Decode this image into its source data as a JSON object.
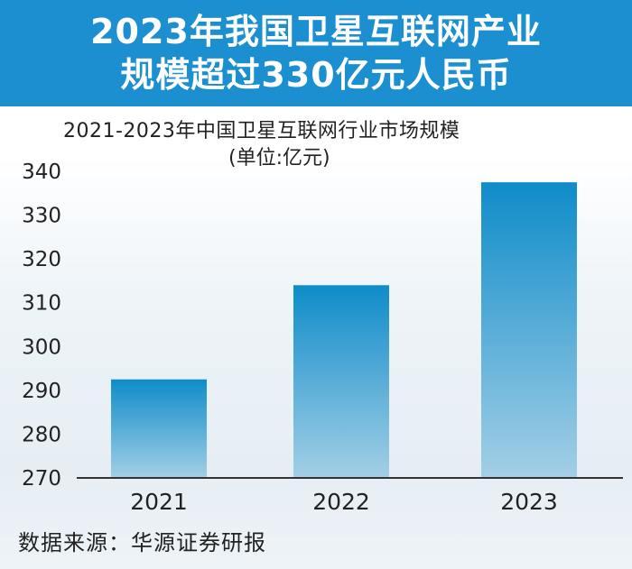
{
  "banner": {
    "line1": "2023年我国卫星互联网产业",
    "line2": "规模超过330亿元人民币"
  },
  "chart_data": {
    "type": "bar",
    "title": "2021-2023年中国卫星互联网行业市场规模",
    "subtitle": "(单位:亿元)",
    "categories": [
      "2021",
      "2022",
      "2023"
    ],
    "values": [
      292.5,
      314,
      337.5
    ],
    "ylim": [
      270,
      340
    ],
    "yticks": [
      270,
      280,
      290,
      300,
      310,
      320,
      330,
      340
    ],
    "grid": false,
    "bar_color_top": "#0f8cc9",
    "bar_color_bottom": "#a3cfe6"
  },
  "source": "数据来源：华源证券研报"
}
